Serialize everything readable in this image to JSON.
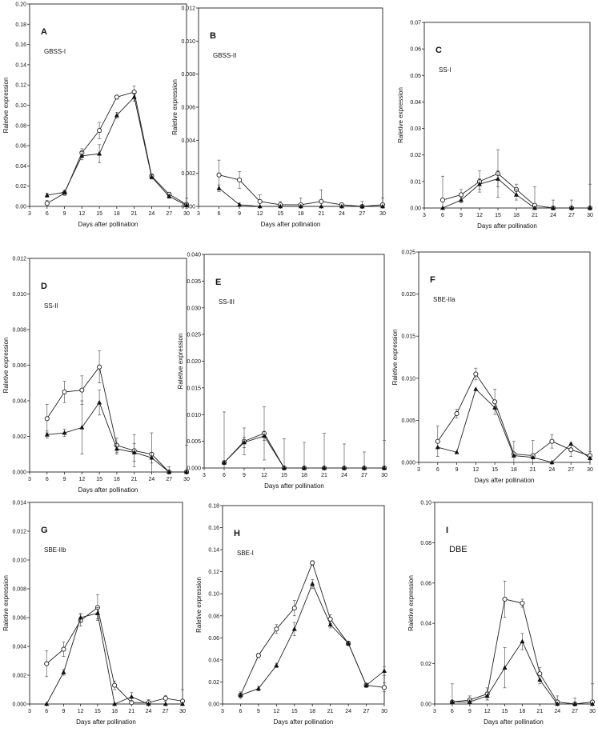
{
  "chart_data": [
    {
      "type": "line",
      "panel_label": "A",
      "gene": "GBSS-I",
      "xlabel": "Days after pollination",
      "ylabel": "Raletive expression",
      "xlim": [
        3,
        30
      ],
      "ylim": [
        0,
        0.2
      ],
      "x_ticks": [
        "3",
        "6",
        "9",
        "12",
        "15",
        "18",
        "21",
        "24",
        "27",
        "30"
      ],
      "y_ticks": [
        "0.00",
        "0.02",
        "0.04",
        "0.06",
        "0.08",
        "0.10",
        "0.12",
        "0.14",
        "0.16",
        "0.18",
        "0.20"
      ],
      "series": [
        {
          "marker": "open-circle",
          "x": [
            6,
            9,
            12,
            15,
            18,
            21,
            24,
            27,
            30
          ],
          "values": [
            0.003,
            0.013,
            0.053,
            0.075,
            0.108,
            0.113,
            0.03,
            0.012,
            0.002
          ],
          "errors": [
            0.003,
            0.002,
            0.004,
            0.008,
            0.002,
            0.006,
            0.002,
            0.002,
            0.006
          ]
        },
        {
          "marker": "filled-triangle",
          "x": [
            6,
            9,
            12,
            15,
            18,
            21,
            24,
            27,
            30
          ],
          "values": [
            0.011,
            0.014,
            0.05,
            0.052,
            0.09,
            0.108,
            0.029,
            0.01,
            0.001
          ],
          "errors": [
            0.002,
            0.002,
            0.004,
            0.009,
            0.003,
            0.004,
            0.002,
            0.002,
            0.002
          ]
        }
      ]
    },
    {
      "type": "line",
      "panel_label": "B",
      "gene": "GBSS-II",
      "xlabel": "Days after pollination",
      "ylabel": "Raletive expression",
      "xlim": [
        3,
        30
      ],
      "ylim": [
        0,
        0.012
      ],
      "x_ticks": [
        "3",
        "6",
        "9",
        "12",
        "15",
        "18",
        "21",
        "24",
        "27",
        "30"
      ],
      "y_ticks": [
        "0.000",
        "0.002",
        "0.004",
        "0.006",
        "0.008",
        "0.010",
        "0.012"
      ],
      "series": [
        {
          "marker": "open-circle",
          "x": [
            6,
            9,
            12,
            15,
            18,
            21,
            24,
            27,
            30
          ],
          "values": [
            0.0019,
            0.0016,
            0.0003,
            0.0001,
            0.0001,
            0.0003,
            0.0001,
            0.0,
            0.0001
          ],
          "errors": [
            0.0009,
            0.0005,
            0.0004,
            0.0002,
            0.0004,
            0.0007,
            0.0001,
            0.0003,
            0.0004
          ]
        },
        {
          "marker": "filled-triangle",
          "x": [
            6,
            9,
            12,
            15,
            18,
            21,
            24,
            27,
            30
          ],
          "values": [
            0.0011,
            0.0001,
            0.0,
            0.0,
            0.0,
            0.0,
            0.0,
            0.0,
            0.0
          ],
          "errors": [
            0.0002,
            0.0001,
            0.0,
            0.0,
            0.0,
            0.0,
            0.0,
            0.0,
            0.0
          ]
        }
      ]
    },
    {
      "type": "line",
      "panel_label": "C",
      "gene": "SS-I",
      "xlabel": "Days after pollination",
      "ylabel": "Raletive expression",
      "xlim": [
        3,
        30
      ],
      "ylim": [
        0,
        0.07
      ],
      "x_ticks": [
        "3",
        "6",
        "9",
        "12",
        "15",
        "18",
        "21",
        "24",
        "27",
        "30"
      ],
      "y_ticks": [
        "0.00",
        "0.01",
        "0.02",
        "0.03",
        "0.04",
        "0.05",
        "0.06",
        "0.07"
      ],
      "series": [
        {
          "marker": "open-circle",
          "x": [
            6,
            9,
            12,
            15,
            18,
            21,
            24,
            27,
            30
          ],
          "values": [
            0.003,
            0.005,
            0.01,
            0.013,
            0.007,
            0.001,
            0.0,
            0.0,
            0.0
          ],
          "errors": [
            0.009,
            0.002,
            0.004,
            0.009,
            0.002,
            0.007,
            0.003,
            0.003,
            0.009
          ]
        },
        {
          "marker": "filled-triangle",
          "x": [
            6,
            9,
            12,
            15,
            18,
            21,
            24,
            27,
            30
          ],
          "values": [
            0.0,
            0.003,
            0.009,
            0.011,
            0.005,
            0.0,
            0.0,
            0.0,
            0.0
          ],
          "errors": [
            0.0,
            0.001,
            0.002,
            0.003,
            0.002,
            0.0,
            0.0,
            0.0,
            0.0
          ]
        }
      ]
    },
    {
      "type": "line",
      "panel_label": "D",
      "gene": "SS-II",
      "xlabel": "Days after pollination",
      "ylabel": "Raletive expression",
      "xlim": [
        3,
        30
      ],
      "ylim": [
        0,
        0.012
      ],
      "x_ticks": [
        "3",
        "6",
        "9",
        "12",
        "15",
        "18",
        "21",
        "24",
        "27",
        "30"
      ],
      "y_ticks": [
        "0.000",
        "0.002",
        "0.004",
        "0.006",
        "0.008",
        "0.010",
        "0.012"
      ],
      "series": [
        {
          "marker": "open-circle",
          "x": [
            6,
            9,
            12,
            15,
            18,
            21,
            24,
            27,
            30
          ],
          "values": [
            0.003,
            0.0045,
            0.0046,
            0.0059,
            0.0015,
            0.0012,
            0.001,
            0.0,
            0.0
          ],
          "errors": [
            0.0008,
            0.0006,
            0.0008,
            0.0009,
            0.0004,
            0.0009,
            0.0012,
            0.0003,
            0.0015
          ]
        },
        {
          "marker": "filled-triangle",
          "x": [
            6,
            9,
            12,
            15,
            18,
            21,
            24,
            27,
            30
          ],
          "values": [
            0.0021,
            0.0022,
            0.0025,
            0.0039,
            0.0013,
            0.0011,
            0.0008,
            0.0,
            0.0
          ],
          "errors": [
            0.0002,
            0.0002,
            0.0015,
            0.0007,
            0.0003,
            0.0005,
            0.0003,
            0.0,
            0.0
          ]
        }
      ]
    },
    {
      "type": "line",
      "panel_label": "E",
      "gene": "SS-III",
      "xlabel": "Days after pollination",
      "ylabel": "Raletive expression",
      "xlim": [
        3,
        30
      ],
      "ylim": [
        0,
        0.04
      ],
      "x_ticks": [
        "3",
        "6",
        "9",
        "12",
        "15",
        "18",
        "21",
        "24",
        "27",
        "30"
      ],
      "y_ticks": [
        "0.000",
        "0.005",
        "0.010",
        "0.015",
        "0.020",
        "0.025",
        "0.030",
        "0.035",
        "0.040"
      ],
      "series": [
        {
          "marker": "open-circle",
          "x": [
            6,
            9,
            12,
            15,
            18,
            21,
            24,
            27,
            30
          ],
          "values": [
            0.001,
            0.005,
            0.0065,
            0.0,
            0.0,
            0.0,
            0.0,
            0.0,
            0.0
          ],
          "errors": [
            0.0095,
            0.0025,
            0.005,
            0.0055,
            0.0048,
            0.0065,
            0.0045,
            0.003,
            0.0052
          ]
        },
        {
          "marker": "filled-triangle",
          "x": [
            6,
            9,
            12,
            15,
            18,
            21,
            24,
            27,
            30
          ],
          "values": [
            0.001,
            0.0048,
            0.006,
            0.0,
            0.0,
            0.0,
            0.0,
            0.0,
            0.0
          ],
          "errors": [
            0.0,
            0.001,
            0.0008,
            0.0,
            0.0,
            0.0,
            0.0,
            0.0,
            0.0
          ]
        }
      ]
    },
    {
      "type": "line",
      "panel_label": "F",
      "gene": "SBE-IIa",
      "xlabel": "Days after pollination",
      "ylabel": "Raletive expression",
      "xlim": [
        3,
        30
      ],
      "ylim": [
        0,
        0.025
      ],
      "x_ticks": [
        "3",
        "6",
        "9",
        "12",
        "15",
        "18",
        "21",
        "24",
        "27",
        "30"
      ],
      "y_ticks": [
        "0.000",
        "0.005",
        "0.010",
        "0.015",
        "0.020",
        "0.025"
      ],
      "series": [
        {
          "marker": "open-circle",
          "x": [
            6,
            9,
            12,
            15,
            18,
            21,
            24,
            27,
            30
          ],
          "values": [
            0.0025,
            0.0058,
            0.0105,
            0.0072,
            0.001,
            0.0008,
            0.0025,
            0.0015,
            0.0008
          ],
          "errors": [
            0.0018,
            0.0005,
            0.0007,
            0.0015,
            0.0015,
            0.0018,
            0.0008,
            0.0008,
            0.0005
          ]
        },
        {
          "marker": "filled-triangle",
          "x": [
            6,
            9,
            12,
            15,
            18,
            21,
            24,
            27,
            30
          ],
          "values": [
            0.0018,
            0.0012,
            0.0087,
            0.0065,
            0.0008,
            0.0006,
            0.0,
            0.0022,
            0.0005
          ]
        }
      ]
    },
    {
      "type": "line",
      "panel_label": "G",
      "gene": "SBE-IIb",
      "xlabel": "Days after pollination",
      "ylabel": "Raletive expression",
      "xlim": [
        3,
        30
      ],
      "ylim": [
        0,
        0.014
      ],
      "x_ticks": [
        "3",
        "6",
        "9",
        "12",
        "15",
        "18",
        "21",
        "24",
        "27",
        "30"
      ],
      "y_ticks": [
        "0.000",
        "0.002",
        "0.004",
        "0.006",
        "0.008",
        "0.010",
        "0.012",
        "0.014"
      ],
      "series": [
        {
          "marker": "open-circle",
          "x": [
            6,
            9,
            12,
            15,
            18,
            21,
            24,
            27,
            30
          ],
          "values": [
            0.0028,
            0.0038,
            0.0058,
            0.0067,
            0.0013,
            0.0001,
            0.0001,
            0.0004,
            0.0002
          ],
          "errors": [
            0.0009,
            0.0005,
            0.0004,
            0.0009,
            0.0003,
            0.0003,
            0.0002,
            0.0002,
            0.0008
          ]
        },
        {
          "marker": "filled-triangle",
          "x": [
            6,
            9,
            12,
            15,
            18,
            21,
            24,
            27,
            30
          ],
          "values": [
            0.0,
            0.0022,
            0.006,
            0.0063,
            0.0,
            0.0005,
            0.0,
            0.0,
            0.0
          ],
          "errors": [
            0.0,
            0.0002,
            0.0003,
            0.0004,
            0.0,
            0.0003,
            0.0,
            0.0,
            0.0
          ]
        }
      ]
    },
    {
      "type": "line",
      "panel_label": "H",
      "gene": "SBE-I",
      "xlabel": "Days after pollination",
      "ylabel": "Raletive expression",
      "xlim": [
        3,
        30
      ],
      "ylim": [
        0,
        0.18
      ],
      "x_ticks": [
        "3",
        "6",
        "9",
        "12",
        "15",
        "18",
        "21",
        "24",
        "27",
        "30"
      ],
      "y_ticks": [
        "0.00",
        "0.02",
        "0.04",
        "0.06",
        "0.08",
        "0.10",
        "0.12",
        "0.14",
        "0.16",
        "0.18"
      ],
      "series": [
        {
          "marker": "open-circle",
          "x": [
            6,
            9,
            12,
            15,
            18,
            21,
            24,
            27,
            30
          ],
          "values": [
            0.008,
            0.044,
            0.068,
            0.087,
            0.128,
            0.077,
            0.055,
            0.017,
            0.015
          ],
          "errors": [
            0.003,
            0.002,
            0.004,
            0.007,
            0.002,
            0.004,
            0.002,
            0.002,
            0.004
          ]
        },
        {
          "marker": "filled-triangle",
          "x": [
            6,
            9,
            12,
            15,
            18,
            21,
            24,
            27,
            30
          ],
          "values": [
            0.008,
            0.014,
            0.035,
            0.068,
            0.109,
            0.072,
            0.055,
            0.017,
            0.03
          ],
          "errors": [
            0.002,
            0.002,
            0.002,
            0.006,
            0.004,
            0.003,
            0.002,
            0.002,
            0.004
          ]
        }
      ]
    },
    {
      "type": "line",
      "panel_label": "I",
      "gene": "DBE",
      "xlabel": "Days after pollination",
      "ylabel": "Raletive expression",
      "xlim": [
        3,
        30
      ],
      "ylim": [
        0,
        0.1
      ],
      "x_ticks": [
        "3",
        "6",
        "9",
        "12",
        "15",
        "18",
        "21",
        "24",
        "27",
        "30"
      ],
      "y_ticks": [
        "0.00",
        "0.02",
        "0.04",
        "0.06",
        "0.08",
        "0.10"
      ],
      "series": [
        {
          "marker": "open-circle",
          "x": [
            6,
            9,
            12,
            15,
            18,
            21,
            24,
            27,
            30
          ],
          "values": [
            0.001,
            0.002,
            0.005,
            0.052,
            0.05,
            0.015,
            0.001,
            0.0,
            0.001
          ],
          "errors": [
            0.009,
            0.002,
            0.003,
            0.009,
            0.002,
            0.003,
            0.003,
            0.003,
            0.009
          ]
        },
        {
          "marker": "filled-triangle",
          "x": [
            6,
            9,
            12,
            15,
            18,
            21,
            24,
            27,
            30
          ],
          "values": [
            0.001,
            0.001,
            0.004,
            0.018,
            0.031,
            0.012,
            0.0,
            0.0,
            0.0
          ],
          "errors": [
            0.0,
            0.001,
            0.002,
            0.01,
            0.004,
            0.002,
            0.0,
            0.0,
            0.0
          ]
        }
      ]
    }
  ]
}
